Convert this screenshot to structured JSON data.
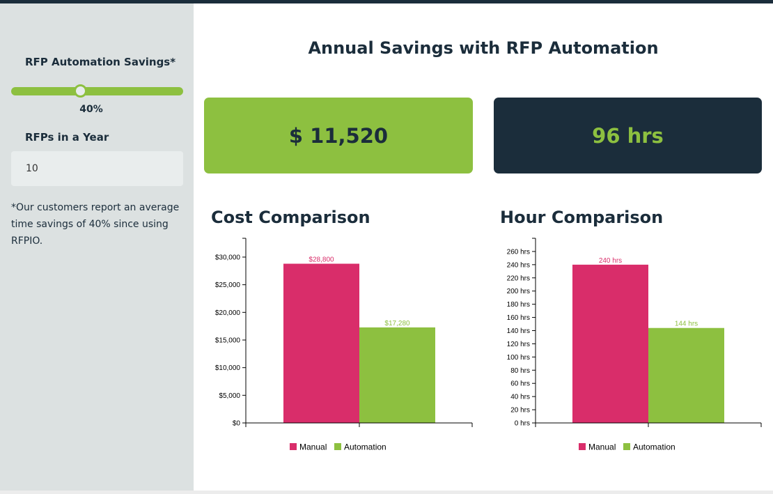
{
  "sidebar": {
    "savings_label": "RFP Automation Savings*",
    "savings_value": "40%",
    "savings_fraction": 0.4,
    "rfps_label": "RFPs in a Year",
    "rfps_value": "10",
    "note": "*Our customers report an average time savings of 40% since using RFPIO."
  },
  "main": {
    "title": "Annual Savings with RFP Automation",
    "cost_savings": "$ 11,520",
    "hour_savings": "96 hrs"
  },
  "colors": {
    "manual": "#d92d6a",
    "automation": "#8dc040",
    "dark": "#1b2d3b",
    "sidebar": "#dce1e1"
  },
  "chart_data": [
    {
      "type": "bar",
      "title": "Cost Comparison",
      "categories": [
        "Manual",
        "Automation"
      ],
      "values": [
        28800,
        17280
      ],
      "data_labels": [
        "$28,800",
        "$17,280"
      ],
      "ylim": [
        0,
        33400
      ],
      "yticks": [
        0,
        5000,
        10000,
        15000,
        20000,
        25000,
        30000
      ],
      "ytick_labels": [
        "$0",
        "$5,000",
        "$10,000",
        "$15,000",
        "$20,000",
        "$25,000",
        "$30,000"
      ],
      "legend": [
        "Manual",
        "Automation"
      ],
      "legend_position": "bottom",
      "grid": false
    },
    {
      "type": "bar",
      "title": "Hour Comparison",
      "categories": [
        "Manual",
        "Automation"
      ],
      "values": [
        240,
        144
      ],
      "data_labels": [
        "240 hrs",
        "144 hrs"
      ],
      "ylim": [
        0,
        280
      ],
      "yticks": [
        0,
        20,
        40,
        60,
        80,
        100,
        120,
        140,
        160,
        180,
        200,
        220,
        240,
        260
      ],
      "ytick_labels": [
        "0 hrs",
        "20 hrs",
        "40 hrs",
        "60 hrs",
        "80 hrs",
        "100 hrs",
        "120 hrs",
        "140 hrs",
        "160 hrs",
        "180 hrs",
        "200 hrs",
        "220 hrs",
        "240 hrs",
        "260 hrs"
      ],
      "legend": [
        "Manual",
        "Automation"
      ],
      "legend_position": "bottom",
      "grid": false
    }
  ]
}
